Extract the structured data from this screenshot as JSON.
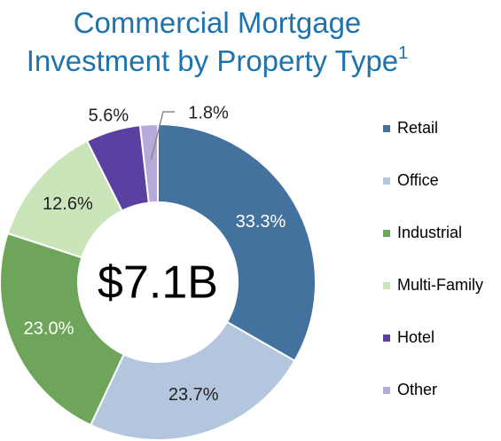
{
  "chart_data": {
    "type": "donut",
    "title": "Commercial Mortgage\nInvestment by Property Type",
    "title_footnote": "1",
    "center_label": "$7.1B",
    "categories": [
      "Retail",
      "Office",
      "Industrial",
      "Multi-Family",
      "Hotel",
      "Other"
    ],
    "values": [
      33.3,
      23.7,
      23.0,
      12.6,
      5.6,
      1.8
    ],
    "value_labels": [
      "33.3%",
      "23.7%",
      "23.0%",
      "12.6%",
      "5.6%",
      "1.8%"
    ],
    "colors": [
      "#44729f",
      "#b3c6de",
      "#6fa55a",
      "#cbe5ba",
      "#5a40a0",
      "#b6aadd"
    ],
    "legend": "right"
  }
}
